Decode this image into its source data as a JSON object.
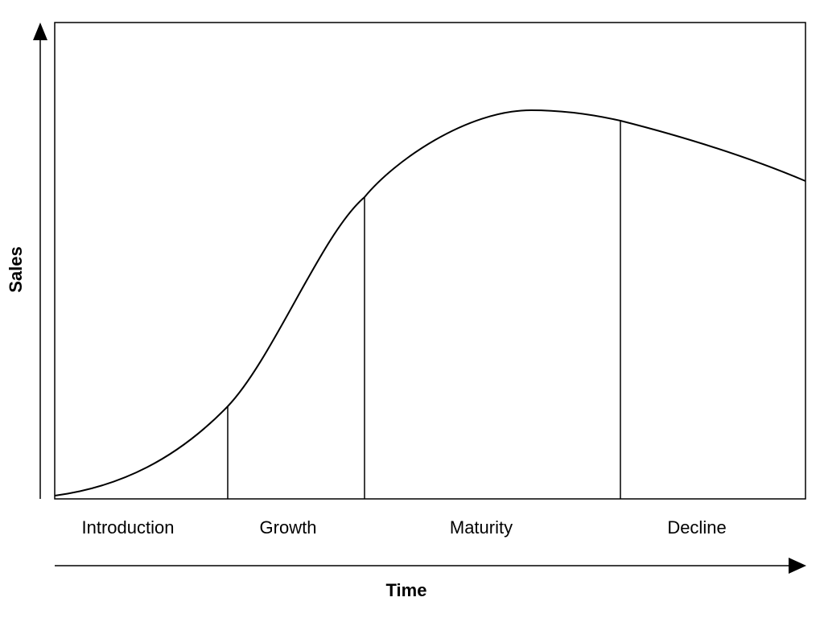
{
  "axes": {
    "y_label": "Sales",
    "x_label": "Time"
  },
  "stages": [
    "Introduction",
    "Growth",
    "Maturity",
    "Decline"
  ]
}
